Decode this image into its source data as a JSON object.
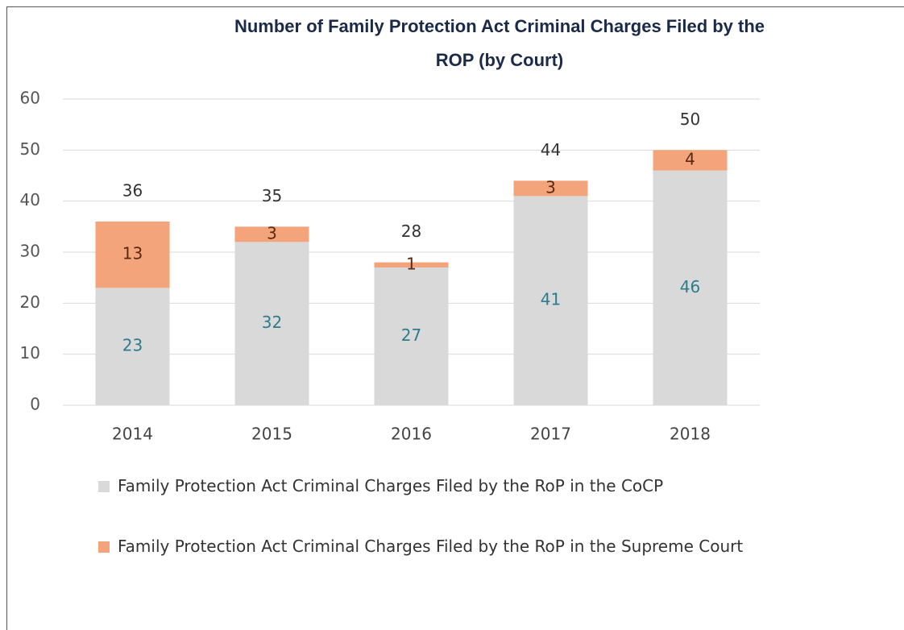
{
  "chart_data": {
    "type": "stacked_bar",
    "title": "Number of Family Protection Act Criminal Charges Filed by the ROP (by Court)",
    "categories": [
      "2014",
      "2015",
      "2016",
      "2017",
      "2018"
    ],
    "series": [
      {
        "name": "Family Protection Act Criminal Charges Filed by the RoP in the CoCP",
        "color": "#d9d9d9",
        "label_color": "#2e7b8c",
        "values": [
          23,
          32,
          27,
          41,
          46
        ]
      },
      {
        "name": "Family Protection Act Criminal Charges Filed by the RoP in the Supreme Court",
        "color": "#f4a47a",
        "label_color": "#5a2a10",
        "values": [
          13,
          3,
          1,
          3,
          4
        ]
      }
    ],
    "totals": [
      36,
      35,
      28,
      44,
      50
    ],
    "ylim": [
      0,
      60
    ],
    "yticks": [
      0,
      10,
      20,
      30,
      40,
      50,
      60
    ],
    "grid": true,
    "legend": "bottom"
  }
}
